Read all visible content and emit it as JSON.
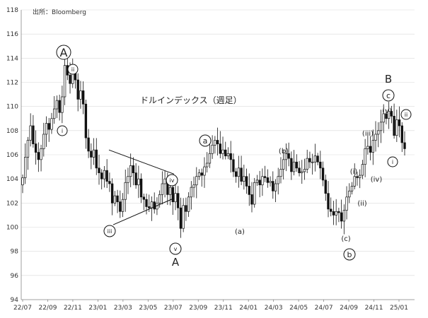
{
  "chart_data": {
    "type": "candlestick",
    "source": "出所：Bloomberg",
    "title": "ドルインデックス（週足）",
    "xlabel": "",
    "ylabel": "",
    "ylim": [
      94,
      118
    ],
    "yticks": [
      94,
      96,
      98,
      100,
      102,
      104,
      106,
      108,
      110,
      112,
      114,
      116,
      118
    ],
    "xticks": [
      "22/07",
      "22/09",
      "22/11",
      "23/01",
      "23/03",
      "23/05",
      "23/07",
      "23/09",
      "23/11",
      "24/01",
      "24/03",
      "24/05",
      "24/07",
      "24/09",
      "24/11",
      "25/01"
    ],
    "closes": [
      104.1,
      105.8,
      107.2,
      108.4,
      106.9,
      106.2,
      105.6,
      106.5,
      107.7,
      108.6,
      108.1,
      109.0,
      109.8,
      110.5,
      109.5,
      110.8,
      113.4,
      112.6,
      111.9,
      113.1,
      112.2,
      110.6,
      111.3,
      110.2,
      107.4,
      106.3,
      105.8,
      106.4,
      104.9,
      104.5,
      104.0,
      104.7,
      103.8,
      103.6,
      102.0,
      102.6,
      102.1,
      101.3,
      102.3,
      103.7,
      104.2,
      105.1,
      104.5,
      103.5,
      104.0,
      102.5,
      102.3,
      101.7,
      101.6,
      102.1,
      101.5,
      102.0,
      102.7,
      103.6,
      104.0,
      102.7,
      103.3,
      102.1,
      102.8,
      101.6,
      99.9,
      101.8,
      101.3,
      102.5,
      103.3,
      103.5,
      104.2,
      104.5,
      104.3,
      105.0,
      105.3,
      106.1,
      106.8,
      107.2,
      106.9,
      106.1,
      106.4,
      105.9,
      106.1,
      105.6,
      104.6,
      104.2,
      104.9,
      103.8,
      104.2,
      103.4,
      102.7,
      101.9,
      103.7,
      103.9,
      103.5,
      104.2,
      104.1,
      103.7,
      103.8,
      103.0,
      103.6,
      104.2,
      104.8,
      105.6,
      106.1,
      105.7,
      104.6,
      105.4,
      104.9,
      104.5,
      104.6,
      104.8,
      105.7,
      105.4,
      105.4,
      105.9,
      105.4,
      104.9,
      103.9,
      102.8,
      101.5,
      101.3,
      101.0,
      101.3,
      101.2,
      100.5,
      101.4,
      102.5,
      103.0,
      103.4,
      104.2,
      104.1,
      104.3,
      105.2,
      106.5,
      106.7,
      106.2,
      107.2,
      107.7,
      108.0,
      108.7,
      109.4,
      109.0,
      109.6,
      109.2,
      107.6,
      108.9,
      108.4,
      107.0,
      106.5
    ],
    "annotations": {
      "top_A": "A",
      "bottom_A": "A",
      "B": "B",
      "circ_a": "a",
      "circ_b": "b",
      "circ_c": "c",
      "wave_i": "i",
      "wave_ii": "ii",
      "wave_iii": "iii",
      "wave_iv": "iv",
      "wave_v": "v",
      "paren_a": "(a)",
      "paren_b": "(b)",
      "paren_c": "(c)",
      "paren_i": "(i)",
      "paren_ii": "(ii)",
      "paren_iii": "(iii)",
      "paren_iv": "(iv)",
      "paren_v": "(v)"
    },
    "colors": {
      "candle": "#111111",
      "grid": "#d9d9d9",
      "axis": "#888888"
    },
    "grid": true,
    "legend": "none"
  }
}
